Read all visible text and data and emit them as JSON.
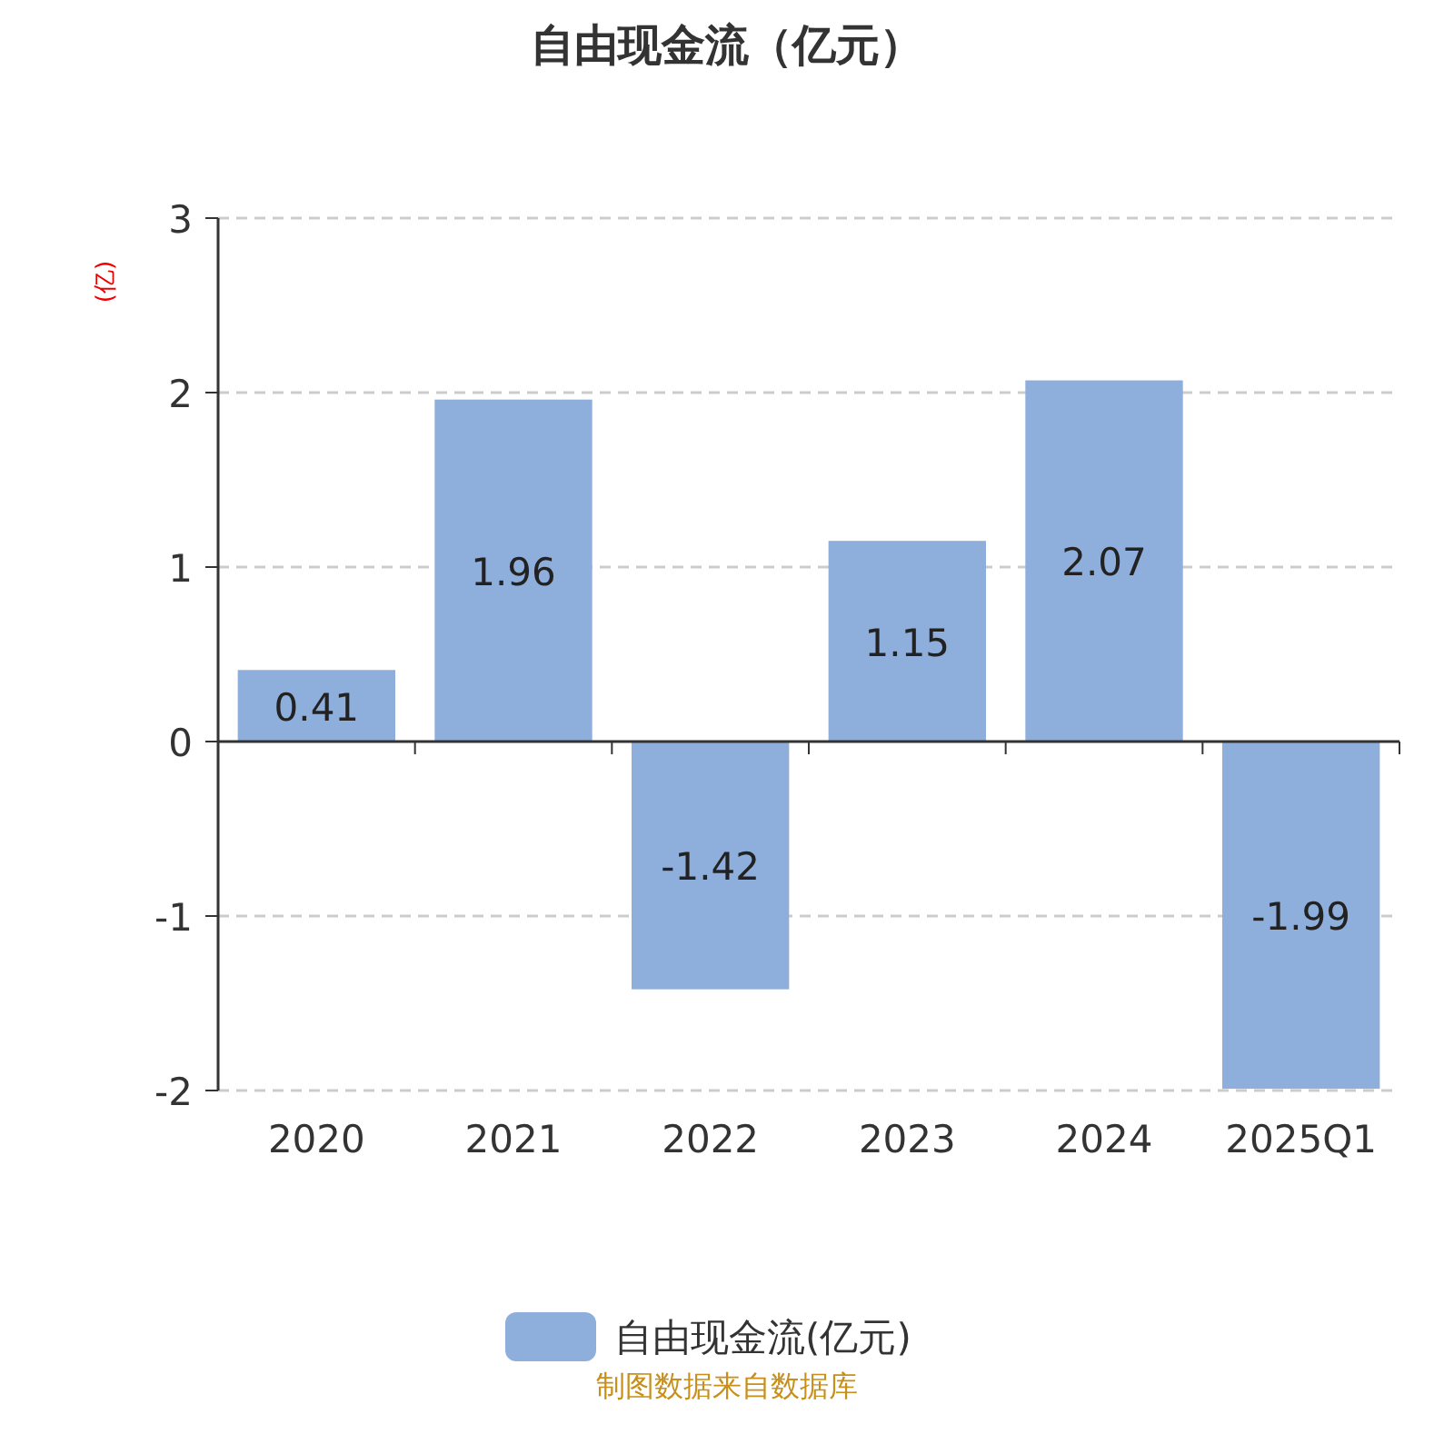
{
  "chart_data": {
    "type": "bar",
    "title": "自由现金流（亿元）",
    "ylabel": "(亿)",
    "categories": [
      "2020",
      "2021",
      "2022",
      "2023",
      "2024",
      "2025Q1"
    ],
    "series": [
      {
        "name": "自由现金流(亿元)",
        "color": "#8eaedb",
        "values": [
          0.41,
          1.96,
          -1.42,
          1.15,
          2.07,
          -1.99
        ]
      }
    ],
    "ylim": [
      -2,
      3
    ],
    "yticks": [
      -2,
      -1,
      0,
      1,
      2,
      3
    ],
    "grid": "y",
    "legend": "bottom",
    "data_labels": true,
    "annotations": [
      "制图数据来自数据库"
    ]
  }
}
